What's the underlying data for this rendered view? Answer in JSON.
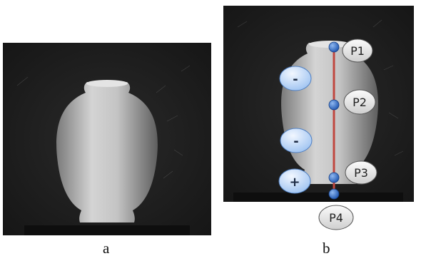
{
  "panel_a": {
    "caption": "a"
  },
  "panel_b": {
    "caption": "b",
    "points": [
      {
        "label": "P1"
      },
      {
        "label": "P2"
      },
      {
        "label": "P3"
      },
      {
        "label": "P4"
      }
    ],
    "buttons": [
      {
        "label": "-"
      },
      {
        "label": "-"
      },
      {
        "label": "+"
      }
    ]
  },
  "colors": {
    "background": "#1b1b1b",
    "axis_line": "#c0473f",
    "point": "#2f6fd0",
    "button": "#bcd5f5",
    "label_bubble": "#e6e6e6"
  }
}
